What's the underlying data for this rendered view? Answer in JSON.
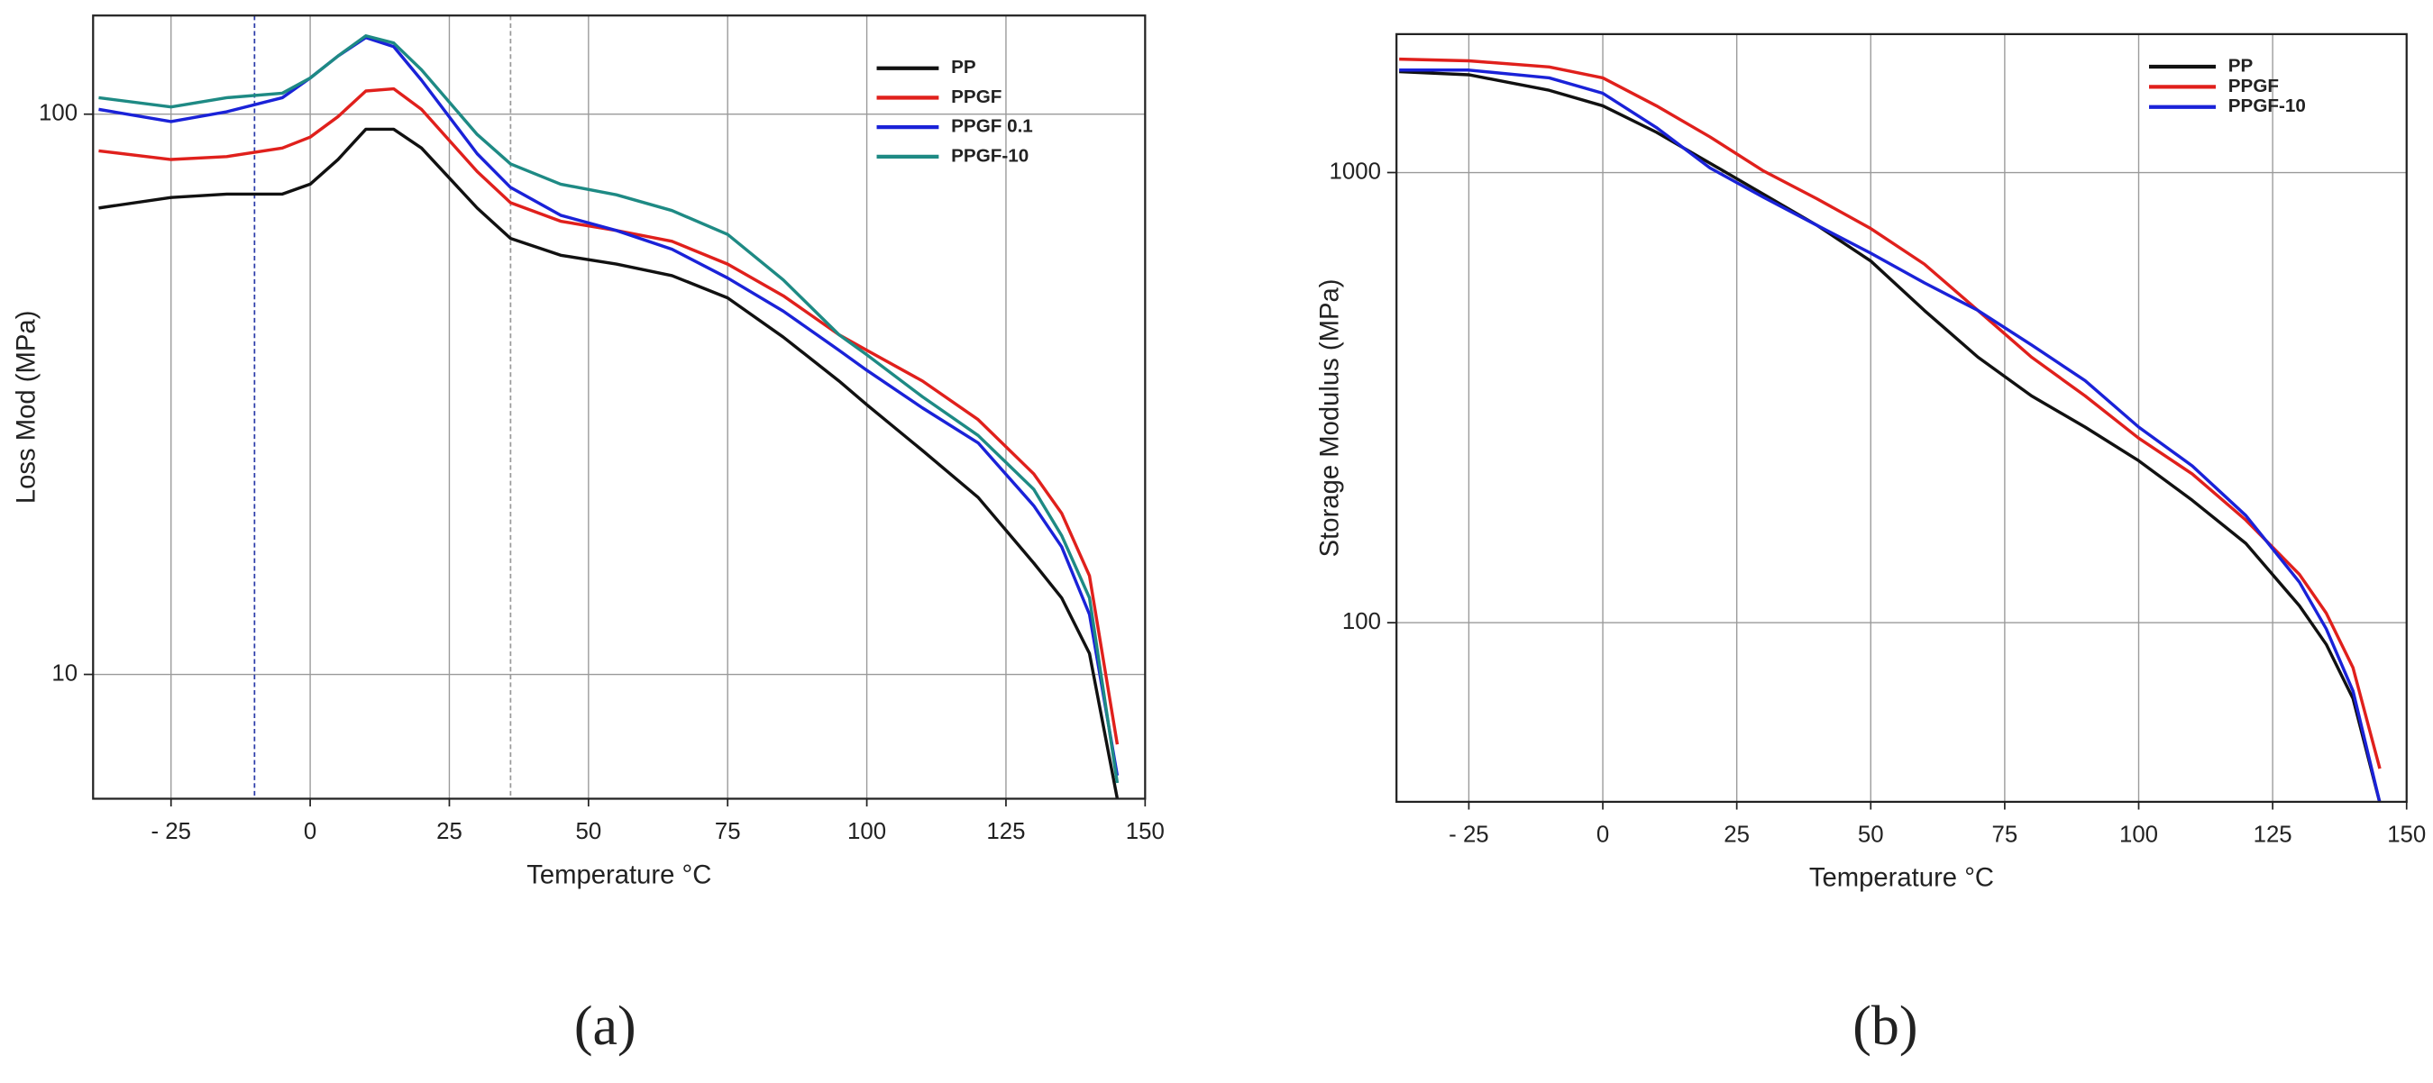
{
  "chart_data": [
    {
      "type": "line",
      "panel_label": "(a)",
      "xlabel": "Temperature °C",
      "ylabel": "Loss Mod (MPa)",
      "log_y": true,
      "grid": true,
      "legend": "upper right",
      "xlim": [
        -39,
        150
      ],
      "ylim": [
        6,
        150
      ],
      "xticks": [
        {
          "value": -25,
          "label": "- 25"
        },
        0,
        25,
        50,
        75,
        100,
        125,
        150
      ],
      "yticks": [
        10,
        100
      ],
      "reference_lines": [
        {
          "x": -10,
          "color": "#2a3aa8"
        },
        {
          "x": 36,
          "color": "#999999"
        }
      ],
      "x": [
        -38,
        -25,
        -15,
        -5,
        0,
        5,
        10,
        15,
        20,
        30,
        36,
        45,
        55,
        65,
        75,
        85,
        95,
        100,
        110,
        120,
        130,
        135,
        140,
        145
      ],
      "series": [
        {
          "name": "PP",
          "color": "#111111",
          "values": [
            68,
            71,
            72,
            72,
            75,
            83,
            94,
            94,
            87,
            68,
            60,
            56,
            54,
            51.5,
            47,
            40,
            33.4,
            30.3,
            25.1,
            20.7,
            15.8,
            13.7,
            10.9,
            6.0
          ]
        },
        {
          "name": "PPGF",
          "color": "#e0201c",
          "values": [
            86,
            83,
            84,
            87,
            91,
            99,
            110,
            111,
            102,
            79,
            69.5,
            64.4,
            62,
            59.3,
            54,
            47.4,
            40.4,
            37.9,
            33.4,
            28.5,
            22.8,
            19.4,
            15,
            7.5
          ]
        },
        {
          "name": "PPGF 0.1",
          "color": "#1a22d8",
          "values": [
            102,
            97,
            101,
            107,
            116,
            127,
            137,
            132,
            115,
            85,
            74,
            66,
            62,
            57.4,
            51,
            44.5,
            37.9,
            34.9,
            29.9,
            25.9,
            20,
            16.9,
            12.8,
            6.6
          ]
        },
        {
          "name": "PPGF-10",
          "color": "#1e8a84",
          "values": [
            107,
            103,
            107,
            109,
            116,
            127,
            138,
            134,
            120,
            92,
            81.5,
            75,
            71.8,
            67.3,
            61,
            50.6,
            40.4,
            37.2,
            31.3,
            26.7,
            21.4,
            17.7,
            13.7,
            6.4
          ]
        }
      ]
    },
    {
      "type": "line",
      "panel_label": "(b)",
      "xlabel": "Temperature °C",
      "ylabel": "Storage Modulus (MPa)",
      "log_y": true,
      "grid": true,
      "legend": "upper right",
      "xlim": [
        -38.5,
        150
      ],
      "ylim": [
        40,
        2030
      ],
      "xticks": [
        {
          "value": -25,
          "label": "- 25"
        },
        0,
        25,
        50,
        75,
        100,
        125,
        150
      ],
      "yticks": [
        100,
        1000
      ],
      "x": [
        -38,
        -25,
        -10,
        0,
        10,
        20,
        30,
        40,
        50,
        60,
        70,
        80,
        90,
        100,
        110,
        120,
        130,
        135,
        140,
        145
      ],
      "series": [
        {
          "name": "PP",
          "color": "#111111",
          "values": [
            1675,
            1649,
            1523,
            1407,
            1229,
            1049,
            895,
            763,
            636,
            494,
            389,
            319,
            272,
            229,
            187,
            150,
            109,
            89.5,
            67.8,
            39.8
          ]
        },
        {
          "name": "PPGF",
          "color": "#e0201c",
          "values": [
            1786,
            1771,
            1716,
            1623,
            1407,
            1200,
            1008,
            874,
            751,
            626,
            494,
            389,
            319,
            257,
            214,
            169,
            128,
            105,
            79.4,
            47.4
          ]
        },
        {
          "name": "PPGF-10",
          "color": "#1a22d8",
          "values": [
            1689,
            1689,
            1623,
            1500,
            1259,
            1024,
            881,
            763,
            662,
            569,
            494,
            414,
            345,
            272,
            223,
            173,
            123,
            96.9,
            70.5,
            39.8
          ]
        }
      ]
    }
  ]
}
